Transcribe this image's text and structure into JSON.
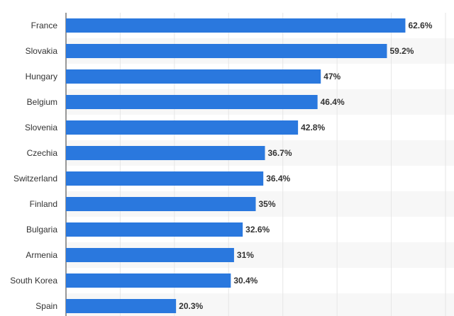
{
  "chart_data": {
    "type": "bar",
    "orientation": "horizontal",
    "categories": [
      "France",
      "Slovakia",
      "Hungary",
      "Belgium",
      "Slovenia",
      "Czechia",
      "Switzerland",
      "Finland",
      "Bulgaria",
      "Armenia",
      "South Korea",
      "Spain"
    ],
    "values": [
      62.6,
      59.2,
      47,
      46.4,
      42.8,
      36.7,
      36.4,
      35,
      32.6,
      31,
      30.4,
      20.3
    ],
    "value_labels": [
      "62.6%",
      "59.2%",
      "47%",
      "46.4%",
      "42.8%",
      "36.7%",
      "36.4%",
      "35%",
      "32.6%",
      "31%",
      "30.4%",
      "20.3%"
    ],
    "xlim": [
      0,
      70
    ],
    "grid": true,
    "bar_color": "#2a78de",
    "stripe_color": "#f7f7f7"
  }
}
